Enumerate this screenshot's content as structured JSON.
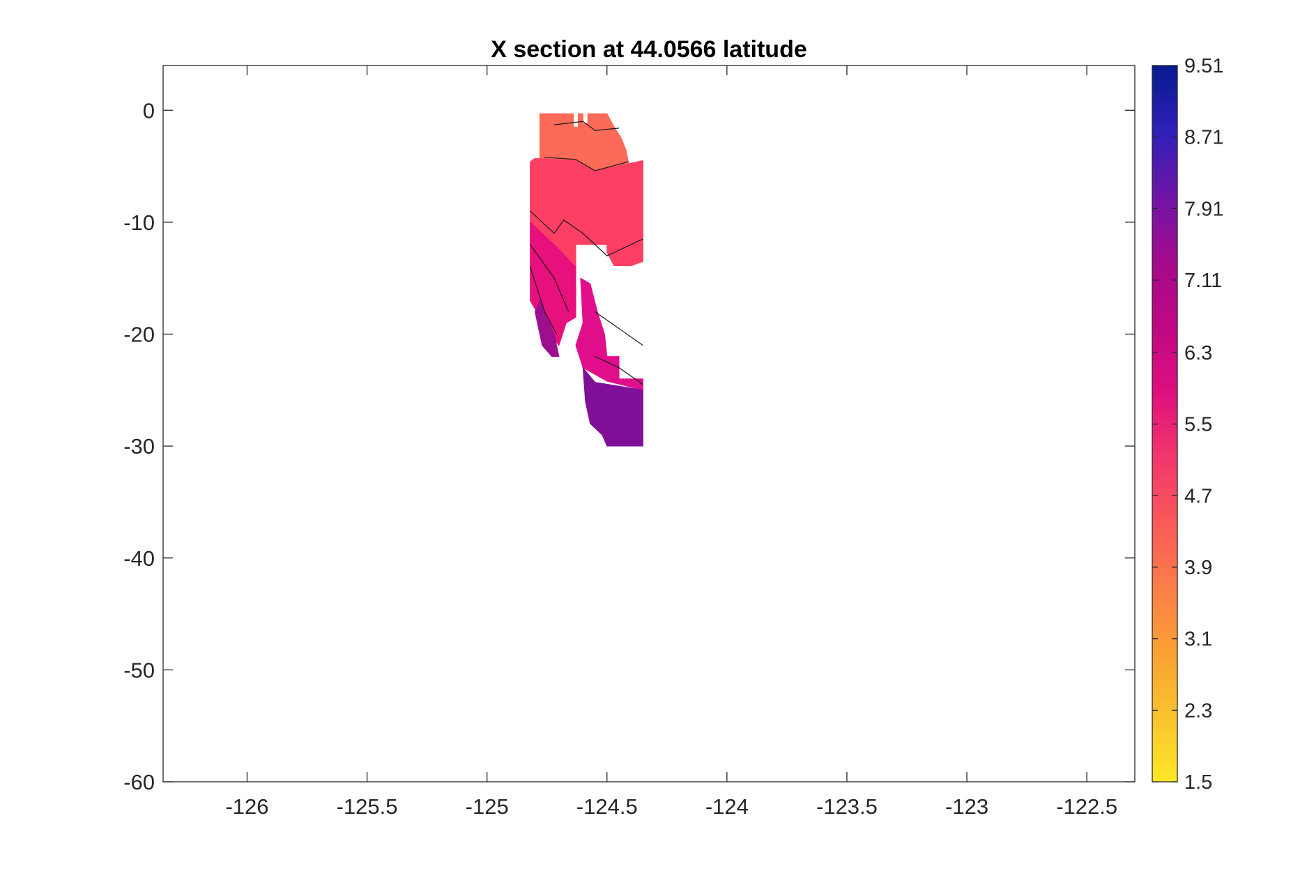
{
  "chart_data": {
    "type": "filled-contour",
    "title": "X section at 44.0566 latitude",
    "xlabel": "",
    "ylabel": "",
    "xlim": [
      -126.35,
      -122.3
    ],
    "ylim": [
      -60,
      4
    ],
    "xticks": [
      -126,
      -125.5,
      -125,
      -124.5,
      -124,
      -123.5,
      -123,
      -122.5
    ],
    "yticks": [
      0,
      -10,
      -20,
      -30,
      -40,
      -50,
      -60
    ],
    "grid": false,
    "colorbar": {
      "min": 1.5,
      "max": 9.51,
      "ticks": [
        9.51,
        8.71,
        7.91,
        7.11,
        6.3,
        5.5,
        4.7,
        3.9,
        3.1,
        2.3,
        1.5
      ],
      "colors": [
        "#fde725",
        "#f9c32e",
        "#f9a033",
        "#fb7d48",
        "#fa585a",
        "#f2366d",
        "#de0f7e",
        "#c00783",
        "#a40a8c",
        "#6f15a8",
        "#2e1fb8",
        "#061b8e"
      ]
    },
    "regions": [
      {
        "level": 4.7,
        "color": "#fd6a57",
        "description": "upper",
        "polygon": [
          [
            -124.76,
            -0.3
          ],
          [
            -124.64,
            -0.3
          ],
          [
            -124.64,
            -1.5
          ],
          [
            -124.62,
            -1.5
          ],
          [
            -124.62,
            -0.3
          ],
          [
            -124.6,
            -0.3
          ],
          [
            -124.6,
            -1.2
          ],
          [
            -124.58,
            -1.2
          ],
          [
            -124.58,
            -0.3
          ],
          [
            -124.5,
            -0.3
          ],
          [
            -124.47,
            -1.5
          ],
          [
            -124.44,
            -2.5
          ],
          [
            -124.42,
            -3.6
          ],
          [
            -124.41,
            -4.7
          ],
          [
            -124.55,
            -5.4
          ],
          [
            -124.63,
            -4.5
          ],
          [
            -124.78,
            -4.3
          ],
          [
            -124.78,
            -0.3
          ]
        ]
      },
      {
        "level": 5.5,
        "color": "#fd3f63",
        "description": "middle",
        "polygon": [
          [
            -124.8,
            -4.3
          ],
          [
            -124.63,
            -4.5
          ],
          [
            -124.55,
            -5.4
          ],
          [
            -124.35,
            -4.5
          ],
          [
            -124.35,
            -13.5
          ],
          [
            -124.4,
            -13.9
          ],
          [
            -124.47,
            -13.9
          ],
          [
            -124.5,
            -12.7
          ],
          [
            -124.5,
            -12
          ],
          [
            -124.63,
            -12
          ],
          [
            -124.63,
            -14
          ],
          [
            -124.72,
            -12
          ],
          [
            -124.82,
            -10
          ],
          [
            -124.82,
            -4.6
          ]
        ]
      },
      {
        "level": 6.3,
        "color": "#e8107c",
        "description": "lower",
        "polygon": [
          [
            -124.82,
            -10
          ],
          [
            -124.72,
            -12
          ],
          [
            -124.63,
            -14
          ],
          [
            -124.63,
            -18.5
          ],
          [
            -124.67,
            -19
          ],
          [
            -124.7,
            -21
          ],
          [
            -124.74,
            -20
          ],
          [
            -124.78,
            -18.5
          ],
          [
            -124.82,
            -17
          ]
        ]
      },
      {
        "level": 6.3,
        "color": "#e00e8a",
        "description": "right-lower",
        "polygon": [
          [
            -124.61,
            -15
          ],
          [
            -124.57,
            -15.5
          ],
          [
            -124.54,
            -18
          ],
          [
            -124.51,
            -20
          ],
          [
            -124.5,
            -22
          ],
          [
            -124.45,
            -22
          ],
          [
            -124.45,
            -24
          ],
          [
            -124.35,
            -24
          ],
          [
            -124.35,
            -25
          ],
          [
            -124.5,
            -24.2
          ],
          [
            -124.6,
            -23
          ],
          [
            -124.63,
            -21
          ],
          [
            -124.6,
            -19
          ]
        ]
      },
      {
        "level": 7.11,
        "color": "#9e0f8f",
        "description": "deep-left",
        "polygon": [
          [
            -124.78,
            -17
          ],
          [
            -124.72,
            -20
          ],
          [
            -124.7,
            -22
          ],
          [
            -124.73,
            -22
          ],
          [
            -124.77,
            -21
          ],
          [
            -124.8,
            -18
          ]
        ]
      },
      {
        "level": 7.11,
        "color": "#800f98",
        "description": "deep-right",
        "polygon": [
          [
            -124.6,
            -23
          ],
          [
            -124.55,
            -24.3
          ],
          [
            -124.35,
            -25
          ],
          [
            -124.35,
            -30
          ],
          [
            -124.5,
            -30
          ],
          [
            -124.52,
            -29
          ],
          [
            -124.57,
            -28
          ],
          [
            -124.59,
            -26
          ]
        ]
      }
    ],
    "contour_lines": [
      [
        [
          -124.76,
          -4.2
        ],
        [
          -124.63,
          -4.4
        ],
        [
          -124.55,
          -5.4
        ],
        [
          -124.41,
          -4.6
        ]
      ],
      [
        [
          -124.72,
          -1.3
        ],
        [
          -124.6,
          -1.0
        ],
        [
          -124.55,
          -1.8
        ],
        [
          -124.45,
          -1.6
        ]
      ],
      [
        [
          -124.82,
          -9.0
        ],
        [
          -124.72,
          -11.0
        ],
        [
          -124.68,
          -9.8
        ],
        [
          -124.6,
          -11
        ],
        [
          -124.5,
          -13
        ],
        [
          -124.35,
          -11.5
        ]
      ],
      [
        [
          -124.82,
          -12
        ],
        [
          -124.72,
          -15
        ],
        [
          -124.66,
          -18
        ]
      ],
      [
        [
          -124.82,
          -14
        ],
        [
          -124.76,
          -18
        ],
        [
          -124.71,
          -20
        ]
      ],
      [
        [
          -124.55,
          -18
        ],
        [
          -124.45,
          -19.5
        ],
        [
          -124.35,
          -21
        ]
      ],
      [
        [
          -124.55,
          -22
        ],
        [
          -124.45,
          -23
        ],
        [
          -124.35,
          -24.5
        ]
      ]
    ]
  }
}
